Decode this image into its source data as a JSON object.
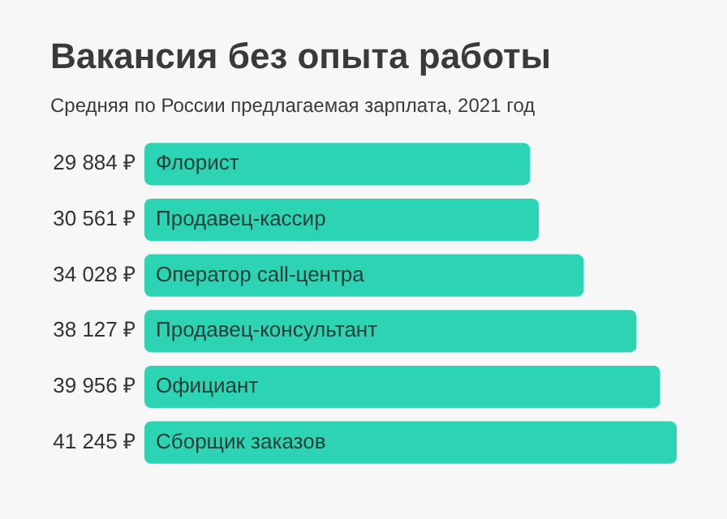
{
  "chart_data": {
    "type": "bar",
    "orientation": "horizontal",
    "title": "Вакансия без опыта работы",
    "subtitle": "Средняя по России предлагаемая зарплата, 2021 год",
    "categories": [
      "Флорист",
      "Продавец-кассир",
      "Оператор call-центра",
      "Продавец-консультант",
      "Официант",
      "Сборщик заказов"
    ],
    "values": [
      29884,
      30561,
      34028,
      38127,
      39956,
      41245
    ],
    "value_labels": [
      "29 884 ₽",
      "30 561 ₽",
      "34 028 ₽",
      "38 127 ₽",
      "39 956 ₽",
      "41 245 ₽"
    ],
    "color": "#2dd4b4"
  }
}
